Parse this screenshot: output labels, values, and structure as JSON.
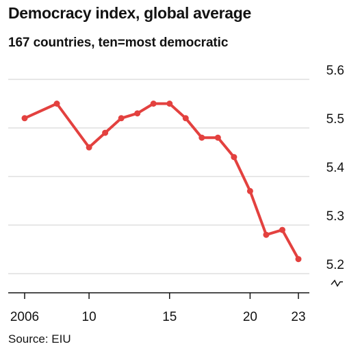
{
  "title": "Democracy index, global average",
  "subtitle": "167 countries, ten=most democratic",
  "source": "Source: EIU",
  "colors": {
    "line": "#e3413f",
    "grid": "#cfcfcf",
    "axis": "#121212",
    "text": "#121212"
  },
  "chart_data": {
    "type": "line",
    "title": "Democracy index, global average",
    "subtitle": "167 countries, ten=most democratic",
    "xlabel": "",
    "ylabel": "",
    "x": [
      2006,
      2008,
      2010,
      2011,
      2012,
      2013,
      2014,
      2015,
      2016,
      2017,
      2018,
      2019,
      2020,
      2021,
      2022,
      2023
    ],
    "series": [
      {
        "values": [
          5.52,
          5.55,
          5.46,
          5.49,
          5.52,
          5.53,
          5.55,
          5.55,
          5.52,
          5.48,
          5.48,
          5.44,
          5.37,
          5.28,
          5.29,
          5.23
        ]
      }
    ],
    "xlim": [
      2006,
      2023
    ],
    "ylim": [
      5.2,
      5.6
    ],
    "y_ticks": [
      {
        "value": 5.6,
        "label": "5.6"
      },
      {
        "value": 5.5,
        "label": "5.5"
      },
      {
        "value": 5.4,
        "label": "5.4"
      },
      {
        "value": 5.3,
        "label": "5.3"
      },
      {
        "value": 5.2,
        "label": "5.2"
      }
    ],
    "x_ticks": [
      {
        "value": 2006,
        "label": "2006"
      },
      {
        "value": 2010,
        "label": "10"
      },
      {
        "value": 2015,
        "label": "15"
      },
      {
        "value": 2020,
        "label": "20"
      },
      {
        "value": 2023,
        "label": "23"
      }
    ],
    "y_axis_side": "right",
    "y_axis_broken": true,
    "grid": true,
    "markers": true
  }
}
